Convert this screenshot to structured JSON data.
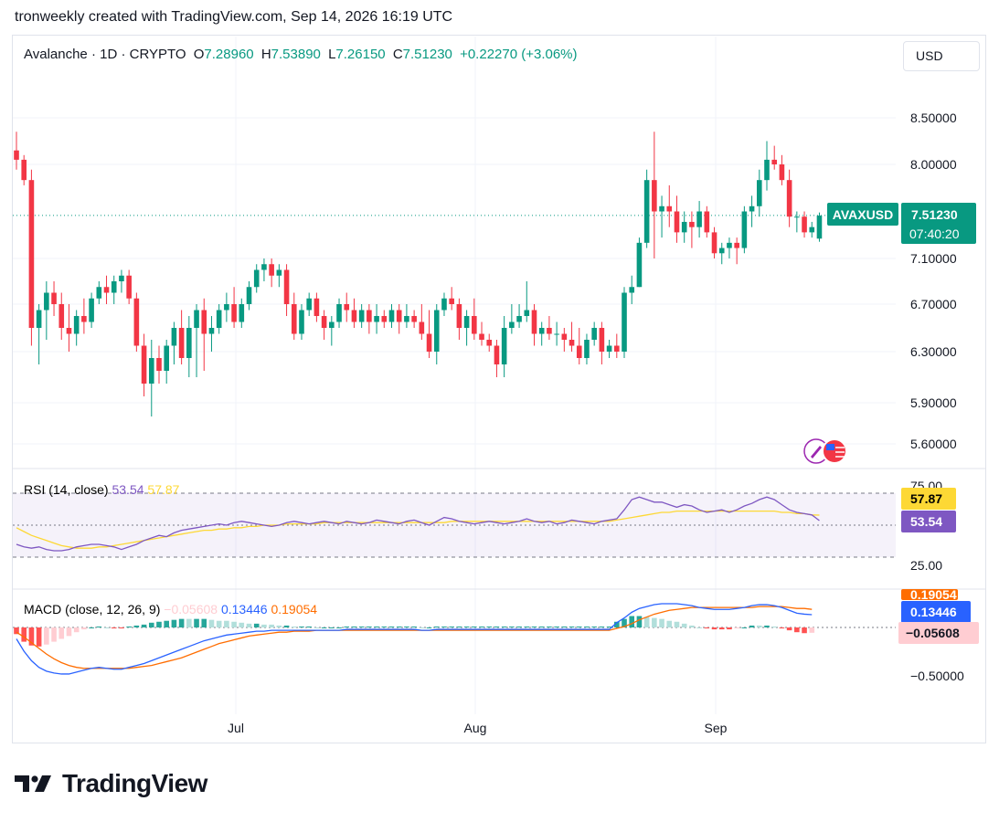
{
  "header": {
    "credit": "tronweekly created with TradingView.com, Sep 14, 2026 16:19 UTC"
  },
  "legend": {
    "symbol": "Avalanche · 1D · CRYPTO",
    "o_label": "O",
    "o_value": "7.28960",
    "h_label": "H",
    "h_value": "7.53890",
    "l_label": "L",
    "l_value": "7.26150",
    "c_label": "C",
    "c_value": "7.51230",
    "change": "+0.22270 (+3.06%)"
  },
  "currency_button": "USD",
  "price_tag": {
    "symbol": "AVAXUSD",
    "price": "7.51230",
    "countdown": "07:40:20"
  },
  "rsi_panel": {
    "title": "RSI (14, close)",
    "rsi_value": "53.54",
    "ma_value": "57.87",
    "ticks": [
      "75.00",
      "25.00"
    ]
  },
  "macd_panel": {
    "title": "MACD (close, 12, 26, 9)",
    "hist_value": "−0.05608",
    "macd_value": "0.13446",
    "signal_value": "0.19054",
    "signal_tag": "0.19054",
    "ticks": [
      "−0.50000"
    ]
  },
  "brand": {
    "name": "TradingView"
  },
  "colors": {
    "up": "#089981",
    "down": "#f23645",
    "rsi_line": "#7e57c2",
    "rsi_ma": "#fdd835",
    "macd_line": "#2962ff",
    "signal_line": "#ff6d00"
  },
  "chart_data": {
    "type": "candlestick",
    "x_axis": {
      "labels": [
        "Jul",
        "Aug",
        "Sep"
      ]
    },
    "y_axis": {
      "ticks": [
        8.5,
        8.0,
        7.1,
        6.7,
        6.3,
        5.9,
        5.6
      ],
      "tick_labels": [
        "8.50000",
        "8.00000",
        "7.10000",
        "6.70000",
        "6.30000",
        "5.90000",
        "5.60000"
      ]
    },
    "last_close": 7.5123,
    "candles": [
      [
        8.15,
        8.35,
        7.95,
        8.05
      ],
      [
        8.05,
        8.1,
        7.8,
        7.85
      ],
      [
        7.85,
        7.95,
        6.35,
        6.5
      ],
      [
        6.5,
        6.7,
        6.2,
        6.65
      ],
      [
        6.65,
        6.9,
        6.4,
        6.8
      ],
      [
        6.8,
        6.9,
        6.6,
        6.7
      ],
      [
        6.7,
        6.8,
        6.4,
        6.5
      ],
      [
        6.5,
        6.7,
        6.3,
        6.45
      ],
      [
        6.45,
        6.65,
        6.35,
        6.6
      ],
      [
        6.6,
        6.75,
        6.45,
        6.55
      ],
      [
        6.55,
        6.8,
        6.5,
        6.75
      ],
      [
        6.75,
        6.9,
        6.7,
        6.85
      ],
      [
        6.85,
        6.95,
        6.7,
        6.8
      ],
      [
        6.8,
        6.95,
        6.7,
        6.9
      ],
      [
        6.9,
        7.0,
        6.8,
        6.95
      ],
      [
        6.95,
        7.0,
        6.7,
        6.75
      ],
      [
        6.75,
        6.8,
        6.3,
        6.35
      ],
      [
        6.35,
        6.45,
        5.95,
        6.05
      ],
      [
        6.05,
        6.4,
        5.8,
        6.25
      ],
      [
        6.25,
        6.35,
        6.05,
        6.15
      ],
      [
        6.15,
        6.4,
        6.05,
        6.35
      ],
      [
        6.35,
        6.55,
        6.2,
        6.5
      ],
      [
        6.5,
        6.65,
        6.2,
        6.25
      ],
      [
        6.25,
        6.6,
        6.1,
        6.5
      ],
      [
        6.5,
        6.7,
        6.1,
        6.65
      ],
      [
        6.65,
        6.75,
        6.15,
        6.45
      ],
      [
        6.45,
        6.6,
        6.3,
        6.5
      ],
      [
        6.5,
        6.7,
        6.45,
        6.65
      ],
      [
        6.65,
        6.8,
        6.55,
        6.7
      ],
      [
        6.7,
        6.85,
        6.5,
        6.55
      ],
      [
        6.55,
        6.75,
        6.5,
        6.7
      ],
      [
        6.7,
        6.9,
        6.65,
        6.85
      ],
      [
        6.85,
        7.05,
        6.8,
        7.0
      ],
      [
        7.0,
        7.1,
        6.9,
        7.05
      ],
      [
        7.05,
        7.1,
        6.85,
        6.95
      ],
      [
        6.95,
        7.05,
        6.85,
        7.0
      ],
      [
        7.0,
        7.05,
        6.6,
        6.7
      ],
      [
        6.7,
        6.8,
        6.4,
        6.45
      ],
      [
        6.45,
        6.7,
        6.4,
        6.65
      ],
      [
        6.65,
        6.8,
        6.6,
        6.75
      ],
      [
        6.75,
        6.8,
        6.55,
        6.6
      ],
      [
        6.6,
        6.65,
        6.4,
        6.5
      ],
      [
        6.5,
        6.6,
        6.35,
        6.55
      ],
      [
        6.55,
        6.75,
        6.5,
        6.7
      ],
      [
        6.7,
        6.8,
        6.55,
        6.65
      ],
      [
        6.65,
        6.75,
        6.5,
        6.55
      ],
      [
        6.55,
        6.7,
        6.5,
        6.65
      ],
      [
        6.65,
        6.7,
        6.45,
        6.55
      ],
      [
        6.55,
        6.7,
        6.45,
        6.6
      ],
      [
        6.6,
        6.65,
        6.5,
        6.55
      ],
      [
        6.55,
        6.7,
        6.5,
        6.65
      ],
      [
        6.65,
        6.7,
        6.45,
        6.55
      ],
      [
        6.55,
        6.7,
        6.5,
        6.6
      ],
      [
        6.6,
        6.65,
        6.5,
        6.55
      ],
      [
        6.55,
        6.7,
        6.4,
        6.45
      ],
      [
        6.45,
        6.65,
        6.25,
        6.3
      ],
      [
        6.3,
        6.7,
        6.2,
        6.65
      ],
      [
        6.65,
        6.8,
        6.6,
        6.75
      ],
      [
        6.75,
        6.85,
        6.65,
        6.7
      ],
      [
        6.7,
        6.75,
        6.4,
        6.5
      ],
      [
        6.5,
        6.65,
        6.35,
        6.6
      ],
      [
        6.6,
        6.75,
        6.4,
        6.45
      ],
      [
        6.45,
        6.55,
        6.35,
        6.4
      ],
      [
        6.4,
        6.45,
        6.3,
        6.35
      ],
      [
        6.35,
        6.4,
        6.1,
        6.2
      ],
      [
        6.2,
        6.6,
        6.1,
        6.5
      ],
      [
        6.5,
        6.7,
        6.45,
        6.55
      ],
      [
        6.55,
        6.7,
        6.5,
        6.6
      ],
      [
        6.6,
        6.9,
        6.55,
        6.65
      ],
      [
        6.65,
        6.7,
        6.35,
        6.45
      ],
      [
        6.45,
        6.55,
        6.35,
        6.5
      ],
      [
        6.5,
        6.6,
        6.4,
        6.45
      ],
      [
        6.45,
        6.55,
        6.35,
        6.45
      ],
      [
        6.45,
        6.5,
        6.3,
        6.4
      ],
      [
        6.4,
        6.55,
        6.3,
        6.35
      ],
      [
        6.35,
        6.5,
        6.2,
        6.25
      ],
      [
        6.25,
        6.45,
        6.2,
        6.4
      ],
      [
        6.4,
        6.55,
        6.35,
        6.5
      ],
      [
        6.5,
        6.55,
        6.2,
        6.3
      ],
      [
        6.3,
        6.4,
        6.25,
        6.35
      ],
      [
        6.35,
        6.45,
        6.25,
        6.3
      ],
      [
        6.3,
        6.85,
        6.25,
        6.8
      ],
      [
        6.8,
        6.95,
        6.7,
        6.85
      ],
      [
        6.85,
        7.3,
        6.85,
        7.25
      ],
      [
        7.25,
        7.95,
        7.2,
        7.85
      ],
      [
        7.85,
        8.35,
        7.1,
        7.55
      ],
      [
        7.55,
        7.7,
        7.3,
        7.6
      ],
      [
        7.6,
        7.8,
        7.4,
        7.55
      ],
      [
        7.55,
        7.7,
        7.25,
        7.35
      ],
      [
        7.35,
        7.55,
        7.25,
        7.45
      ],
      [
        7.45,
        7.55,
        7.2,
        7.4
      ],
      [
        7.4,
        7.65,
        7.3,
        7.55
      ],
      [
        7.55,
        7.6,
        7.3,
        7.35
      ],
      [
        7.35,
        7.4,
        7.1,
        7.15
      ],
      [
        7.15,
        7.25,
        7.05,
        7.2
      ],
      [
        7.2,
        7.3,
        7.1,
        7.25
      ],
      [
        7.25,
        7.3,
        7.05,
        7.2
      ],
      [
        7.2,
        7.6,
        7.15,
        7.55
      ],
      [
        7.55,
        7.7,
        7.4,
        7.6
      ],
      [
        7.6,
        7.95,
        7.5,
        7.85
      ],
      [
        7.85,
        8.25,
        7.75,
        8.05
      ],
      [
        8.05,
        8.2,
        7.95,
        8.0
      ],
      [
        8.0,
        8.1,
        7.8,
        7.85
      ],
      [
        7.85,
        7.95,
        7.4,
        7.5
      ],
      [
        7.5,
        7.55,
        7.35,
        7.5
      ],
      [
        7.5,
        7.55,
        7.3,
        7.35
      ],
      [
        7.35,
        7.45,
        7.3,
        7.4
      ],
      [
        7.29,
        7.54,
        7.26,
        7.51
      ]
    ],
    "rsi": [
      35,
      33,
      32,
      33,
      31,
      30,
      30,
      31,
      33,
      34,
      35,
      35,
      34,
      33,
      31,
      33,
      35,
      38,
      40,
      42,
      41,
      44,
      46,
      47,
      48,
      49,
      50,
      51,
      50,
      52,
      53,
      52,
      51,
      50,
      49,
      50,
      52,
      53,
      52,
      51,
      52,
      53,
      52,
      51,
      53,
      52,
      51,
      52,
      54,
      53,
      52,
      51,
      53,
      54,
      52,
      50,
      53,
      56,
      55,
      53,
      52,
      51,
      52,
      53,
      52,
      51,
      52,
      53,
      55,
      53,
      52,
      53,
      51,
      52,
      54,
      53,
      52,
      51,
      53,
      54,
      55,
      62,
      70,
      72,
      70,
      68,
      68,
      66,
      64,
      66,
      65,
      62,
      60,
      61,
      62,
      60,
      62,
      65,
      67,
      70,
      72,
      70,
      66,
      62,
      60,
      59,
      58,
      53.54
    ],
    "rsi_ma": [
      48,
      45,
      42,
      40,
      38,
      36,
      34,
      33,
      32,
      32,
      32,
      33,
      33,
      34,
      35,
      36,
      37,
      38,
      39,
      40,
      41,
      42,
      43,
      44,
      45,
      46,
      46,
      47,
      47,
      48,
      48,
      49,
      49,
      50,
      50,
      50,
      51,
      51,
      51,
      51,
      51,
      52,
      52,
      52,
      52,
      52,
      52,
      52,
      52,
      52,
      52,
      52,
      52,
      52,
      52,
      52,
      52,
      52,
      53,
      53,
      53,
      53,
      53,
      53,
      53,
      53,
      53,
      53,
      53,
      53,
      53,
      53,
      53,
      53,
      53,
      53,
      53,
      53,
      53,
      53,
      54,
      55,
      56,
      57,
      58,
      59,
      60,
      60,
      61,
      61,
      61,
      61,
      61,
      61,
      61,
      61,
      61,
      61,
      61,
      61,
      61,
      61,
      60,
      60,
      59,
      59,
      58,
      57.87
    ],
    "macd": [
      -0.12,
      -0.25,
      -0.35,
      -0.42,
      -0.46,
      -0.48,
      -0.49,
      -0.49,
      -0.47,
      -0.45,
      -0.43,
      -0.42,
      -0.43,
      -0.44,
      -0.44,
      -0.42,
      -0.4,
      -0.38,
      -0.35,
      -0.32,
      -0.29,
      -0.26,
      -0.23,
      -0.2,
      -0.17,
      -0.14,
      -0.12,
      -0.1,
      -0.08,
      -0.07,
      -0.06,
      -0.05,
      -0.04,
      -0.04,
      -0.03,
      -0.03,
      -0.03,
      -0.03,
      -0.03,
      -0.03,
      -0.03,
      -0.03,
      -0.03,
      -0.03,
      -0.02,
      -0.02,
      -0.02,
      -0.02,
      -0.02,
      -0.02,
      -0.02,
      -0.02,
      -0.02,
      -0.02,
      -0.03,
      -0.03,
      -0.02,
      -0.02,
      -0.02,
      -0.02,
      -0.02,
      -0.02,
      -0.02,
      -0.02,
      -0.02,
      -0.02,
      -0.02,
      -0.02,
      -0.02,
      -0.02,
      -0.02,
      -0.02,
      -0.02,
      -0.02,
      -0.02,
      -0.02,
      -0.02,
      -0.02,
      -0.02,
      -0.02,
      0.05,
      0.1,
      0.16,
      0.2,
      0.22,
      0.24,
      0.25,
      0.25,
      0.25,
      0.24,
      0.23,
      0.21,
      0.2,
      0.19,
      0.19,
      0.19,
      0.2,
      0.21,
      0.23,
      0.24,
      0.24,
      0.23,
      0.21,
      0.18,
      0.15,
      0.14,
      0.13446
    ],
    "signal": [
      -0.05,
      -0.1,
      -0.16,
      -0.22,
      -0.28,
      -0.33,
      -0.37,
      -0.4,
      -0.42,
      -0.43,
      -0.43,
      -0.43,
      -0.43,
      -0.43,
      -0.43,
      -0.43,
      -0.42,
      -0.41,
      -0.4,
      -0.38,
      -0.36,
      -0.34,
      -0.32,
      -0.29,
      -0.26,
      -0.23,
      -0.2,
      -0.17,
      -0.15,
      -0.13,
      -0.11,
      -0.09,
      -0.08,
      -0.07,
      -0.06,
      -0.05,
      -0.05,
      -0.04,
      -0.04,
      -0.04,
      -0.03,
      -0.03,
      -0.03,
      -0.03,
      -0.03,
      -0.03,
      -0.03,
      -0.03,
      -0.03,
      -0.03,
      -0.03,
      -0.03,
      -0.03,
      -0.03,
      -0.03,
      -0.03,
      -0.03,
      -0.03,
      -0.03,
      -0.03,
      -0.03,
      -0.03,
      -0.03,
      -0.03,
      -0.03,
      -0.03,
      -0.03,
      -0.03,
      -0.03,
      -0.03,
      -0.03,
      -0.03,
      -0.03,
      -0.03,
      -0.03,
      -0.03,
      -0.03,
      -0.03,
      -0.03,
      -0.03,
      -0.01,
      0.01,
      0.04,
      0.08,
      0.11,
      0.14,
      0.16,
      0.18,
      0.19,
      0.2,
      0.21,
      0.21,
      0.21,
      0.21,
      0.21,
      0.21,
      0.21,
      0.21,
      0.21,
      0.22,
      0.22,
      0.22,
      0.22,
      0.21,
      0.2,
      0.2,
      0.19054
    ],
    "macd_hist_last": -0.05608
  }
}
